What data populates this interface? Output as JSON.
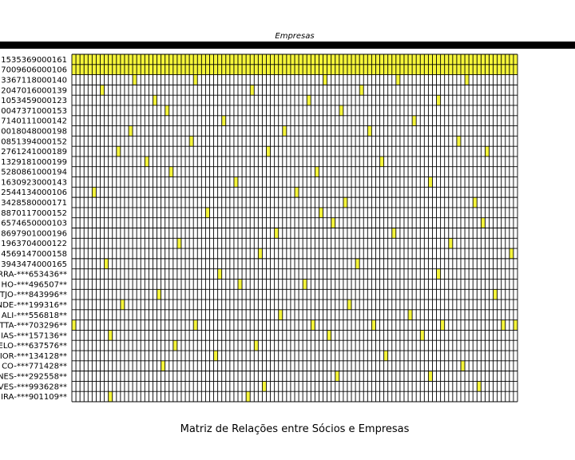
{
  "chart_data": {
    "type": "heatmap",
    "title": "Matriz de Relações entre Sócios e Empresas",
    "subtitle": "Empresas",
    "colors": {
      "present": "#f5f53a",
      "absent": "#000000",
      "grid": "#000000",
      "background": "#ffffff"
    },
    "n_columns": 110,
    "rows": [
      "1535369000161",
      "7009606000106",
      "3367118000140",
      "2047016000139",
      "1053459000123",
      "0047371000153",
      "7140111000142",
      "0018048000198",
      "0851394000152",
      "2761241000189",
      "1329181000199",
      "5280861000194",
      "1630923000143",
      "2544134000106",
      "3428580000171",
      "8870117000152",
      "6574650000103",
      "8697901000196",
      "1963704000122",
      "4569147000158",
      "3943474000165",
      "RRA-***653436**",
      "HO-***496507**",
      "TJO-***843996**",
      "NDE-***199316**",
      "ALI-***556818**",
      "TTA-***703296**",
      "IAS-***157136**",
      "ELO-***637576**",
      "IOR-***134128**",
      "CO-***771428**",
      "NES-***292558**",
      "VES-***993628**",
      "IRA-***901109**"
    ],
    "full_rows": [
      0,
      1
    ],
    "cells": [
      [
        2,
        15
      ],
      [
        2,
        30
      ],
      [
        2,
        62
      ],
      [
        2,
        80
      ],
      [
        2,
        97
      ],
      [
        3,
        7
      ],
      [
        3,
        44
      ],
      [
        3,
        71
      ],
      [
        4,
        20
      ],
      [
        4,
        58
      ],
      [
        4,
        90
      ],
      [
        5,
        23
      ],
      [
        5,
        66
      ],
      [
        6,
        37
      ],
      [
        6,
        84
      ],
      [
        7,
        14
      ],
      [
        7,
        52
      ],
      [
        7,
        73
      ],
      [
        8,
        29
      ],
      [
        8,
        95
      ],
      [
        9,
        11
      ],
      [
        9,
        48
      ],
      [
        9,
        102
      ],
      [
        10,
        18
      ],
      [
        10,
        76
      ],
      [
        11,
        24
      ],
      [
        11,
        60
      ],
      [
        12,
        40
      ],
      [
        12,
        88
      ],
      [
        13,
        5
      ],
      [
        13,
        55
      ],
      [
        14,
        67
      ],
      [
        14,
        99
      ],
      [
        15,
        33
      ],
      [
        15,
        61
      ],
      [
        16,
        64
      ],
      [
        16,
        101
      ],
      [
        17,
        50
      ],
      [
        17,
        79
      ],
      [
        18,
        93
      ],
      [
        18,
        26
      ],
      [
        19,
        46
      ],
      [
        19,
        108
      ],
      [
        20,
        8
      ],
      [
        20,
        70
      ],
      [
        21,
        36
      ],
      [
        21,
        90
      ],
      [
        22,
        41
      ],
      [
        22,
        57
      ],
      [
        23,
        21
      ],
      [
        23,
        104
      ],
      [
        24,
        68
      ],
      [
        24,
        12
      ],
      [
        25,
        51
      ],
      [
        25,
        83
      ],
      [
        26,
        0
      ],
      [
        26,
        30
      ],
      [
        26,
        59
      ],
      [
        26,
        74
      ],
      [
        26,
        91
      ],
      [
        26,
        106
      ],
      [
        26,
        109
      ],
      [
        27,
        9
      ],
      [
        27,
        63
      ],
      [
        27,
        86
      ],
      [
        28,
        25
      ],
      [
        28,
        45
      ],
      [
        29,
        77
      ],
      [
        29,
        35
      ],
      [
        30,
        22
      ],
      [
        30,
        96
      ],
      [
        31,
        65
      ],
      [
        31,
        88
      ],
      [
        32,
        47
      ],
      [
        32,
        100
      ],
      [
        33,
        9
      ],
      [
        33,
        43
      ]
    ]
  }
}
